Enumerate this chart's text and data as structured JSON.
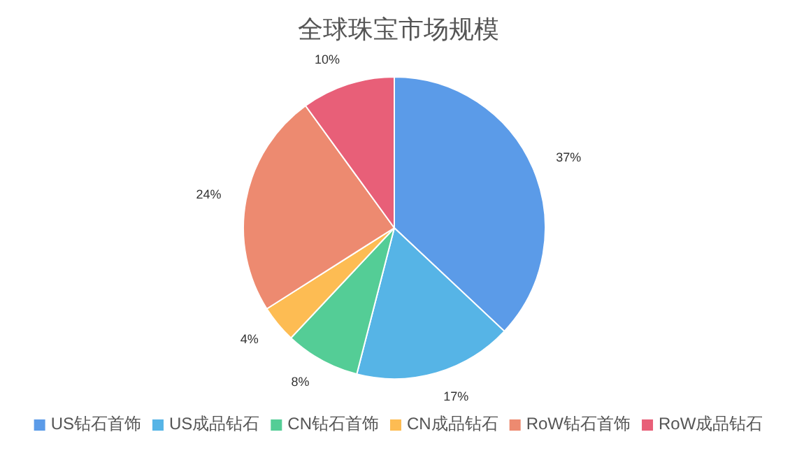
{
  "chart_data": {
    "type": "pie",
    "title": "全球珠宝市场规模",
    "categories": [
      "US钻石首饰",
      "US成品钻石",
      "CN钻石首饰",
      "CN成品钻石",
      "RoW钻石首饰",
      "RoW成品钻石"
    ],
    "values": [
      37,
      17,
      8,
      4,
      24,
      10
    ],
    "colors": [
      "#5b9be8",
      "#56b4e6",
      "#54cd96",
      "#fdbc53",
      "#ed8a70",
      "#e85f78"
    ],
    "value_labels": [
      "37%",
      "17%",
      "8%",
      "4%",
      "24%",
      "10%"
    ],
    "legend": "bottom"
  }
}
